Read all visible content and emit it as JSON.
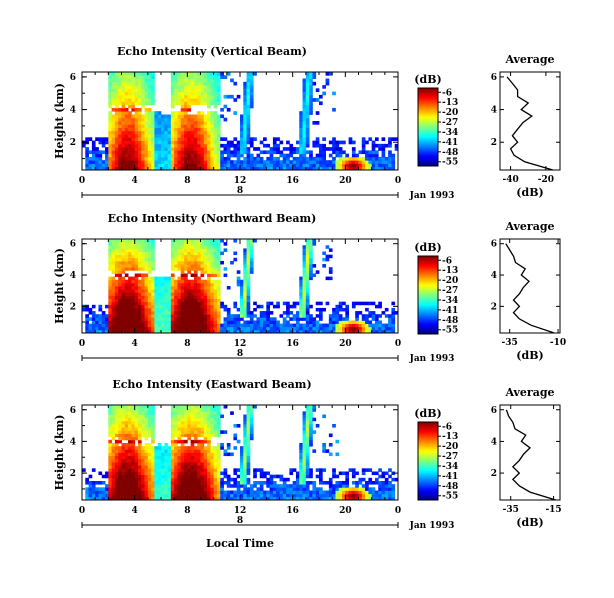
{
  "chart_data": [
    {
      "type": "heatmap",
      "title": "Echo Intensity (Vertical Beam)",
      "ylabel": "Height (km)",
      "x_ticks": [
        "0",
        "4",
        "8",
        "12",
        "16",
        "20",
        "0"
      ],
      "y_ticks": [
        "2",
        "4",
        "6"
      ],
      "day_label": "8",
      "date_label": "Jan 1993",
      "xlim": [
        0,
        24
      ],
      "ylim": [
        0.3,
        6.3
      ],
      "colorbar": {
        "unit": "(dB)",
        "ticks": [
          "-6",
          "-13",
          "-20",
          "-27",
          "-34",
          "-41",
          "-48",
          "-55"
        ],
        "range": [
          -58,
          -3
        ]
      },
      "profile": {
        "title": "Average",
        "xlabel": "(dB)",
        "x_ticks": [
          "-40",
          "-20"
        ],
        "xlim": [
          -46,
          -12
        ],
        "y_ticks": [
          "2",
          "4",
          "6"
        ],
        "ylim": [
          0.3,
          6.3
        ],
        "height_km": [
          0.3,
          0.8,
          1.2,
          1.6,
          2.0,
          2.4,
          2.8,
          3.2,
          3.6,
          4.0,
          4.4,
          4.8,
          5.2,
          5.6,
          6.0
        ],
        "db": [
          -16,
          -32,
          -38,
          -40,
          -36,
          -39,
          -36,
          -33,
          -28,
          -34,
          -30,
          -36,
          -36,
          -39,
          -42
        ]
      }
    },
    {
      "type": "heatmap",
      "title": "Echo Intensity (Northward Beam)",
      "ylabel": "Height (km)",
      "x_ticks": [
        "0",
        "4",
        "8",
        "12",
        "16",
        "20",
        "0"
      ],
      "y_ticks": [
        "2",
        "4",
        "6"
      ],
      "day_label": "8",
      "date_label": "Jan 1993",
      "xlim": [
        0,
        24
      ],
      "ylim": [
        0.3,
        6.3
      ],
      "colorbar": {
        "unit": "(dB)",
        "ticks": [
          "-6",
          "-13",
          "-20",
          "-27",
          "-34",
          "-41",
          "-48",
          "-55"
        ],
        "range": [
          -58,
          -3
        ]
      },
      "profile": {
        "title": "Average",
        "xlabel": "(dB)",
        "x_ticks": [
          "-35",
          "-10"
        ],
        "xlim": [
          -40,
          -9
        ],
        "y_ticks": [
          "2",
          "4",
          "6"
        ],
        "ylim": [
          0.3,
          6.3
        ],
        "height_km": [
          0.3,
          0.8,
          1.2,
          1.6,
          2.0,
          2.4,
          2.8,
          3.2,
          3.6,
          4.0,
          4.4,
          4.8,
          5.2,
          5.6,
          6.0
        ],
        "db": [
          -12,
          -24,
          -30,
          -33,
          -30,
          -33,
          -30,
          -28,
          -25,
          -29,
          -27,
          -32,
          -33,
          -35,
          -37
        ]
      }
    },
    {
      "type": "heatmap",
      "title": "Echo Intensity (Eastward Beam)",
      "ylabel": "Height (km)",
      "x_ticks": [
        "0",
        "4",
        "8",
        "12",
        "16",
        "20",
        "0"
      ],
      "y_ticks": [
        "2",
        "4",
        "6"
      ],
      "day_label": "8",
      "date_label": "Jan 1993",
      "xlabel": "Local Time",
      "xlim": [
        0,
        24
      ],
      "ylim": [
        0.3,
        6.3
      ],
      "colorbar": {
        "unit": "(dB)",
        "ticks": [
          "-6",
          "-13",
          "-20",
          "-27",
          "-34",
          "-41",
          "-48",
          "-55"
        ],
        "range": [
          -58,
          -3
        ]
      },
      "profile": {
        "title": "Average",
        "xlabel": "(dB)",
        "x_ticks": [
          "-35",
          "-15"
        ],
        "xlim": [
          -40,
          -12
        ],
        "y_ticks": [
          "2",
          "4",
          "6"
        ],
        "ylim": [
          0.3,
          6.3
        ],
        "height_km": [
          0.3,
          0.8,
          1.2,
          1.6,
          2.0,
          2.4,
          2.8,
          3.2,
          3.6,
          4.0,
          4.4,
          4.8,
          5.2,
          5.6,
          6.0
        ],
        "db": [
          -14,
          -26,
          -31,
          -34,
          -31,
          -34,
          -31,
          -29,
          -26,
          -30,
          -28,
          -33,
          -34,
          -36,
          -37
        ]
      }
    }
  ]
}
